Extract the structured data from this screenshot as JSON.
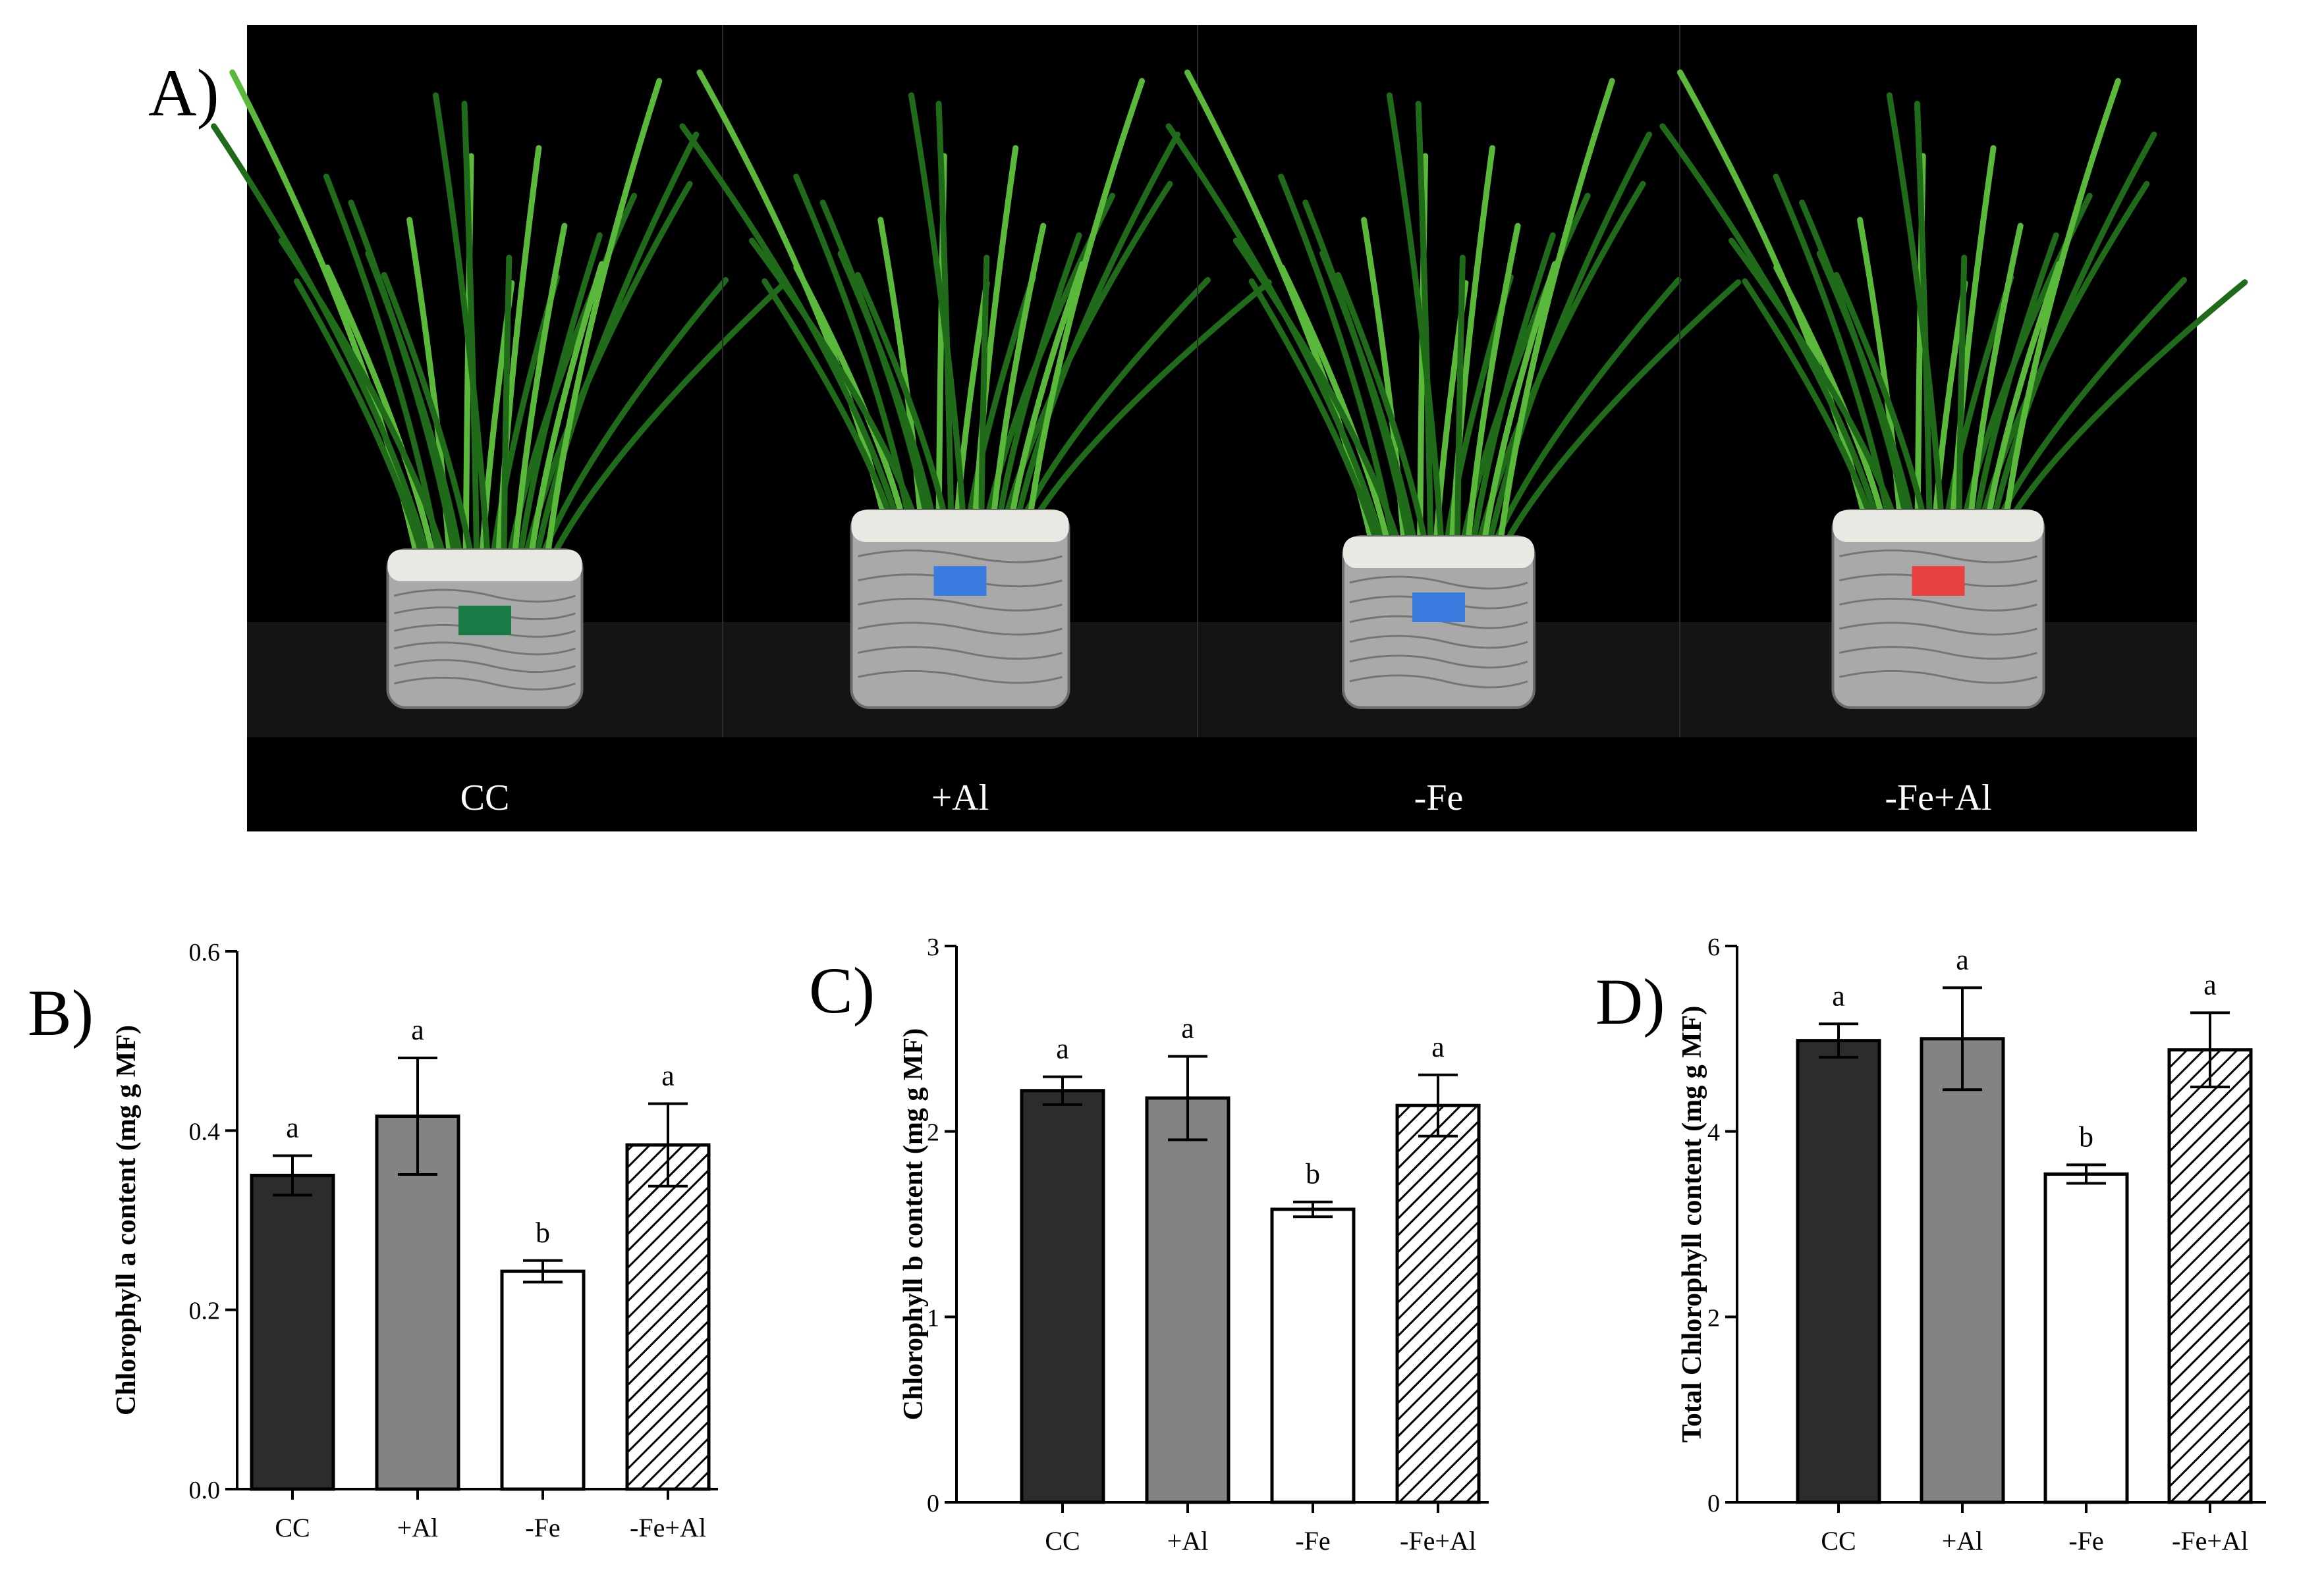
{
  "figure": {
    "panel_a": {
      "letter": "A)",
      "photo_labels": [
        "CC",
        "+Al",
        "-Fe",
        "-Fe+Al"
      ],
      "tag_colors": [
        "#1a7a45",
        "#3a7be0",
        "#3a7be0",
        "#e8413f"
      ]
    }
  },
  "colors": {
    "cc": "#2c2c2c",
    "al": "#838383",
    "fe": "#ffffff",
    "feal": "#ffffff",
    "plant_dark": "#1f6b1a",
    "plant_light": "#5ab83a",
    "foil": "#a9a9a9",
    "photo_bg": "#000000",
    "photo_text": "#ffffff"
  },
  "chart_data": [
    {
      "panel": "B)",
      "type": "bar",
      "categories": [
        "CC",
        "+Al",
        "-Fe",
        "-Fe+Al"
      ],
      "values": [
        0.35,
        0.416,
        0.243,
        0.384
      ],
      "errors": [
        0.022,
        0.065,
        0.012,
        0.046
      ],
      "letters": [
        "a",
        "a",
        "b",
        "a"
      ],
      "ylabel": "Chlorophyll a content (mg g MF)",
      "ylim": [
        0,
        0.6
      ],
      "yticks": [
        0.0,
        0.2,
        0.4,
        0.6
      ],
      "ytick_labels": [
        "0.0",
        "0.2",
        "0.4",
        "0.6"
      ],
      "fills": [
        "solid-dark",
        "solid-gray",
        "white",
        "hatched"
      ]
    },
    {
      "panel": "C)",
      "type": "bar",
      "categories": [
        "CC",
        "+Al",
        "-Fe",
        "-Fe+Al"
      ],
      "values": [
        2.22,
        2.18,
        1.58,
        2.14
      ],
      "errors": [
        0.075,
        0.225,
        0.04,
        0.165
      ],
      "letters": [
        "a",
        "a",
        "b",
        "a"
      ],
      "ylabel": "Chlorophyll b content (mg g MF)",
      "ylim": [
        0,
        3
      ],
      "yticks": [
        0,
        1,
        2,
        3
      ],
      "ytick_labels": [
        "0",
        "1",
        "2",
        "3"
      ],
      "fills": [
        "solid-dark",
        "solid-gray",
        "white",
        "hatched"
      ]
    },
    {
      "panel": "D)",
      "type": "bar",
      "categories": [
        "CC",
        "+Al",
        "-Fe",
        "-Fe+Al"
      ],
      "values": [
        4.98,
        5.0,
        3.54,
        4.88
      ],
      "errors": [
        0.18,
        0.55,
        0.1,
        0.4
      ],
      "letters": [
        "a",
        "a",
        "b",
        "a"
      ],
      "ylabel": "Total Chlorophyll content (mg g MF)",
      "ylim": [
        0,
        6
      ],
      "yticks": [
        0,
        2,
        4,
        6
      ],
      "ytick_labels": [
        "0",
        "2",
        "4",
        "6"
      ],
      "fills": [
        "solid-dark",
        "solid-gray",
        "white",
        "hatched"
      ]
    }
  ]
}
